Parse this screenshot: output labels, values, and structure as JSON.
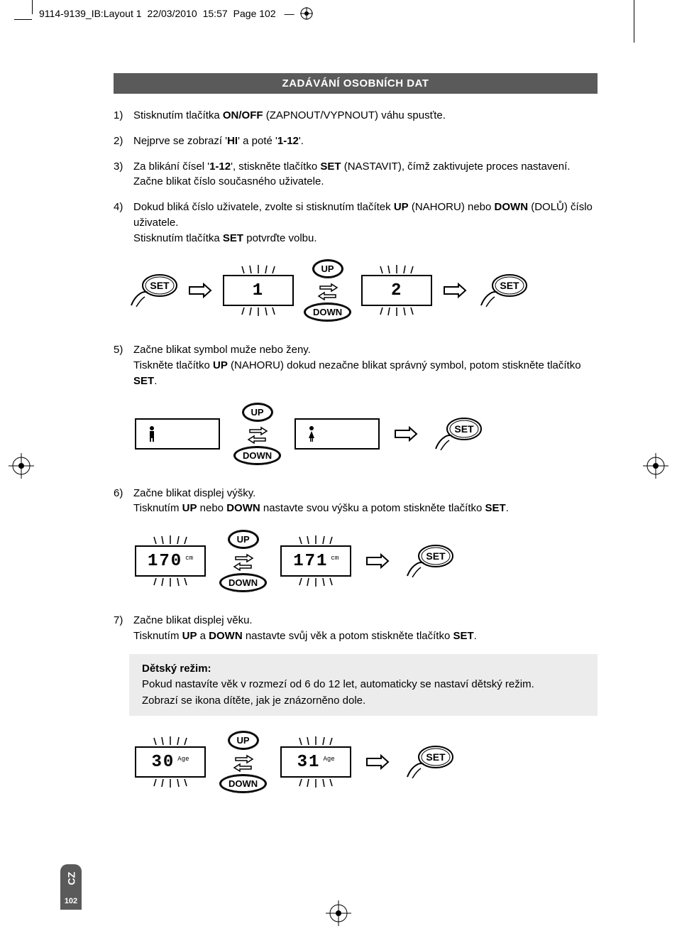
{
  "slug": {
    "filename": "9114-9139_IB:Layout 1",
    "date": "22/03/2010",
    "time": "15:57",
    "page_label": "Page 102"
  },
  "section_title": "ZADÁVÁNÍ OSOBNÍCH DAT",
  "steps": {
    "s1": {
      "num": "1)",
      "html": "Stisknutím tlačítka <b>ON/OFF</b> (ZAPNOUT/VYPNOUT) váhu spusťte."
    },
    "s2": {
      "num": "2)",
      "html": "Nejprve se zobrazí '<b>HI</b>' a poté '<b>1-12</b>'."
    },
    "s3": {
      "num": "3)",
      "html": "Za blikání čísel '<b>1-12</b>', stiskněte tlačítko <b>SET</b> (NASTAVIT), čímž zaktivujete proces nastavení. Začne blikat číslo současného uživatele."
    },
    "s4": {
      "num": "4)",
      "html": "Dokud bliká číslo uživatele, zvolte si stisknutím tlačítek <b>UP</b> (NAHORU) nebo <b>DOWN</b> (DOLŮ) číslo uživatele.<br>Stisknutím tlačítka <b>SET</b> potvrďte volbu."
    },
    "s5": {
      "num": "5)",
      "html": "Začne blikat symbol muže nebo ženy.<br>Tiskněte tlačítko <b>UP</b> (NAHORU) dokud nezačne blikat správný symbol, potom stiskněte tlačítko <b>SET</b>."
    },
    "s6": {
      "num": "6)",
      "html": "Začne blikat displej výšky.<br>Tisknutím <b>UP</b> nebo <b>DOWN</b> nastavte svou výšku a potom stiskněte tlačítko <b>SET</b>."
    },
    "s7": {
      "num": "7)",
      "html": "Začne blikat displej věku.<br>Tisknutím <b>UP</b> a <b>DOWN</b> nastavte svůj věk a potom stiskněte tlačítko <b>SET</b>."
    }
  },
  "note": {
    "title": "Dětský režim:",
    "line1": "Pokud nastavíte věk v rozmezí od 6 do 12 let, automaticky se nastaví dětský režim.",
    "line2": "Zobrazí se ikona dítěte, jak je znázorněno dole."
  },
  "buttons": {
    "set": "SET",
    "up": "UP",
    "down": "DOWN"
  },
  "lcd": {
    "user1": "1",
    "user2": "2",
    "height1": "170",
    "height2": "171",
    "height_unit": "cm",
    "age1": "30",
    "age2": "31",
    "age_unit": "Age"
  },
  "side": {
    "lang": "CZ",
    "page": "102"
  },
  "colors": {
    "header_bg": "#5a5a5a",
    "note_bg": "#ececec",
    "text": "#000000"
  }
}
